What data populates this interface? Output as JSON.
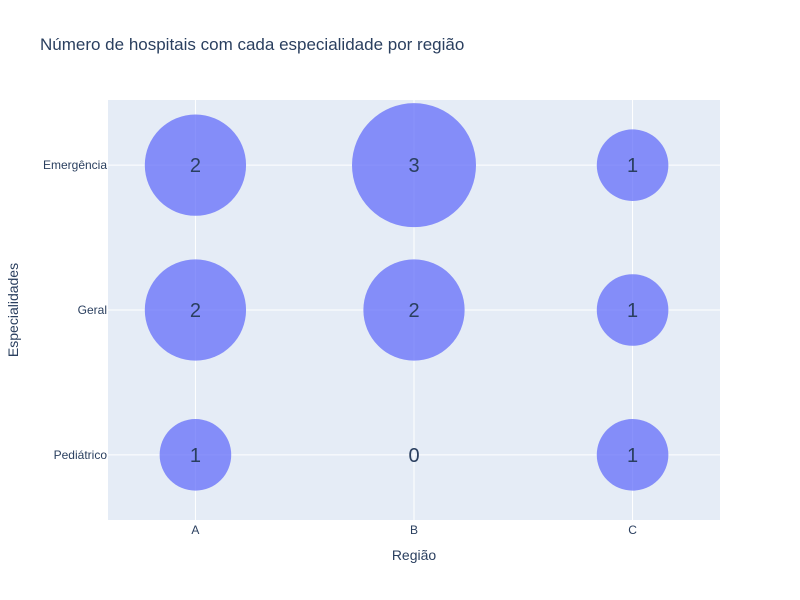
{
  "chart_data": {
    "type": "scatter",
    "title": "Número de hospitais com cada especialidade por região",
    "xlabel": "Região",
    "ylabel": "Especialidades",
    "x_categories": [
      "A",
      "B",
      "C"
    ],
    "y_categories": [
      "Pediátrico",
      "Geral",
      "Emergência"
    ],
    "points": [
      {
        "x": "A",
        "y": "Emergência",
        "value": 2
      },
      {
        "x": "B",
        "y": "Emergência",
        "value": 3
      },
      {
        "x": "C",
        "y": "Emergência",
        "value": 1
      },
      {
        "x": "A",
        "y": "Geral",
        "value": 2
      },
      {
        "x": "B",
        "y": "Geral",
        "value": 2
      },
      {
        "x": "C",
        "y": "Geral",
        "value": 1
      },
      {
        "x": "A",
        "y": "Pediátrico",
        "value": 1
      },
      {
        "x": "B",
        "y": "Pediátrico",
        "value": 0
      },
      {
        "x": "C",
        "y": "Pediátrico",
        "value": 1
      }
    ],
    "marker_color": "#636efa",
    "plot_background": "#e5ecf6",
    "grid": true,
    "legend": false
  }
}
